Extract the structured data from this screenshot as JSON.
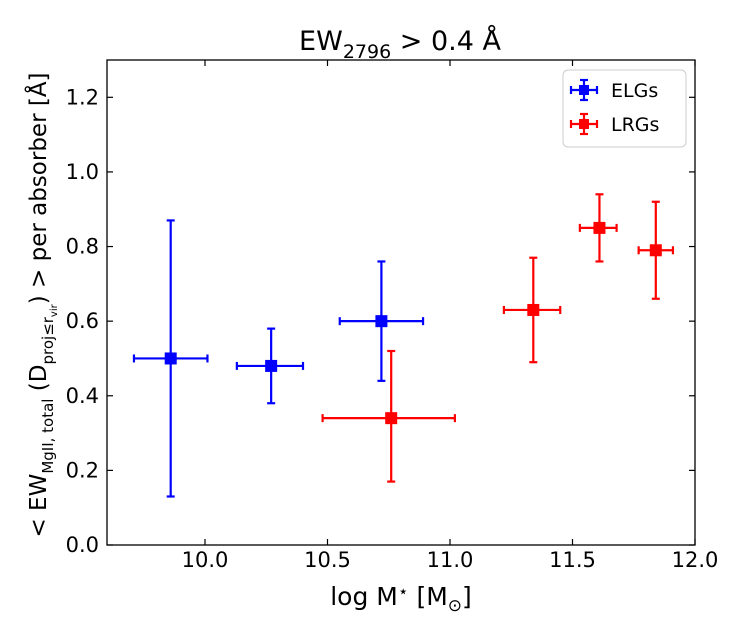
{
  "chart_data": {
    "type": "scatter",
    "title": {
      "main": "EW",
      "sub": "2796",
      "rest": " > 0.4 Å"
    },
    "xlabel": {
      "pre": "log M",
      "star": "⋆",
      "post": " [M",
      "sun": "⊙",
      "close": "]"
    },
    "ylabel": {
      "lt": "< EW",
      "sub1": "MgII, total",
      "paren": " (D",
      "sub2": "proj≤r",
      "sub3": "vir",
      "tail": ") >  per absorber [Å]"
    },
    "xlim": [
      9.6,
      12.0
    ],
    "ylim": [
      0.0,
      1.3
    ],
    "xticks": [
      10.0,
      10.5,
      11.0,
      11.5,
      12.0
    ],
    "xtick_labels": [
      "10.0",
      "10.5",
      "11.0",
      "11.5",
      "12.0"
    ],
    "yticks": [
      0.0,
      0.2,
      0.4,
      0.6,
      0.8,
      1.0,
      1.2
    ],
    "ytick_labels": [
      "0.0",
      "0.2",
      "0.4",
      "0.6",
      "0.8",
      "1.0",
      "1.2"
    ],
    "legend_position": "top-right",
    "series": [
      {
        "name": "ELGs",
        "color": "#0000ff",
        "points": [
          {
            "x": 9.86,
            "y": 0.5,
            "xlo": 9.71,
            "xhi": 10.01,
            "ylo": 0.13,
            "yhi": 0.87
          },
          {
            "x": 10.27,
            "y": 0.48,
            "xlo": 10.13,
            "xhi": 10.4,
            "ylo": 0.38,
            "yhi": 0.58
          },
          {
            "x": 10.72,
            "y": 0.6,
            "xlo": 10.55,
            "xhi": 10.89,
            "ylo": 0.44,
            "yhi": 0.76
          }
        ]
      },
      {
        "name": "LRGs",
        "color": "#ff0000",
        "points": [
          {
            "x": 10.76,
            "y": 0.34,
            "xlo": 10.48,
            "xhi": 11.02,
            "ylo": 0.17,
            "yhi": 0.52
          },
          {
            "x": 11.34,
            "y": 0.63,
            "xlo": 11.22,
            "xhi": 11.45,
            "ylo": 0.49,
            "yhi": 0.77
          },
          {
            "x": 11.61,
            "y": 0.85,
            "xlo": 11.53,
            "xhi": 11.68,
            "ylo": 0.76,
            "yhi": 0.94
          },
          {
            "x": 11.84,
            "y": 0.79,
            "xlo": 11.77,
            "xhi": 11.91,
            "ylo": 0.66,
            "yhi": 0.92
          }
        ]
      }
    ]
  }
}
